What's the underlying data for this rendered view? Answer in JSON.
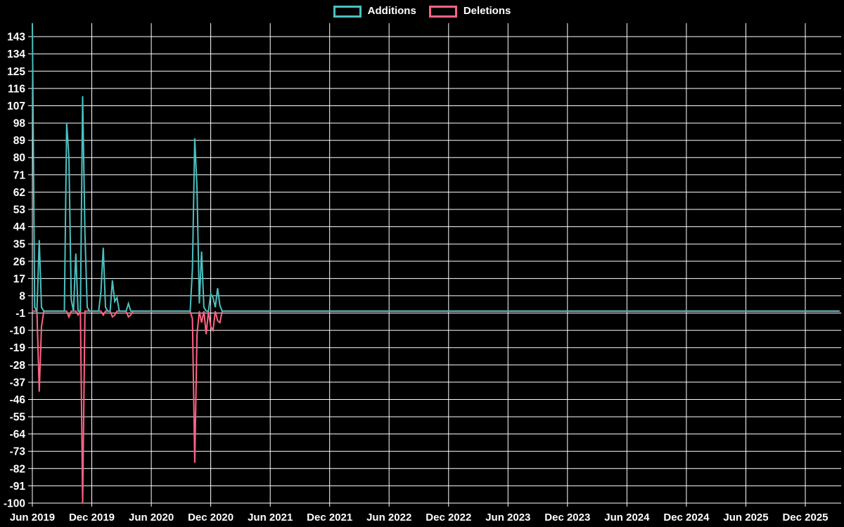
{
  "legend": {
    "items": [
      {
        "label": "Additions",
        "color": "#4bc0c0"
      },
      {
        "label": "Deletions",
        "color": "#ff6384"
      }
    ]
  },
  "chart_data": {
    "type": "line",
    "title": "",
    "xlabel": "",
    "ylabel": "",
    "background_color": "#000000",
    "grid_color": "#ffffff",
    "text_color": "#ffffff",
    "grid": true,
    "legend_position": "top-center",
    "ylim": [
      -100,
      150
    ],
    "y_ticks": [
      143,
      134,
      125,
      116,
      107,
      98,
      89,
      80,
      71,
      62,
      53,
      44,
      35,
      26,
      17,
      8,
      -1,
      -10,
      -19,
      -28,
      -37,
      -46,
      -55,
      -64,
      -73,
      -82,
      -91,
      -100
    ],
    "x_tick_labels": [
      "Jun 2019",
      "Dec 2019",
      "Jun 2020",
      "Dec 2020",
      "Jun 2021",
      "Dec 2021",
      "Jun 2022",
      "Dec 2022",
      "Jun 2023",
      "Dec 2023",
      "Jun 2024",
      "Dec 2024",
      "Jun 2025",
      "Dec 2025"
    ],
    "weeks_per_tick": 26,
    "weeks_total": 354,
    "series": [
      {
        "name": "Additions",
        "color": "#4bc0c0",
        "baseline": 0,
        "points_sparse": [
          [
            0,
            150
          ],
          [
            1,
            2
          ],
          [
            3,
            37
          ],
          [
            4,
            2
          ],
          [
            15,
            98
          ],
          [
            16,
            80
          ],
          [
            17,
            6
          ],
          [
            19,
            30
          ],
          [
            22,
            112
          ],
          [
            23,
            40
          ],
          [
            24,
            2
          ],
          [
            30,
            10
          ],
          [
            31,
            33
          ],
          [
            32,
            2
          ],
          [
            35,
            16
          ],
          [
            36,
            5
          ],
          [
            37,
            7
          ],
          [
            42,
            4
          ],
          [
            70,
            22
          ],
          [
            71,
            90
          ],
          [
            72,
            64
          ],
          [
            73,
            4
          ],
          [
            74,
            31
          ],
          [
            75,
            2
          ],
          [
            78,
            9
          ],
          [
            79,
            7
          ],
          [
            80,
            2
          ],
          [
            81,
            12
          ],
          [
            82,
            3
          ]
        ]
      },
      {
        "name": "Deletions",
        "color": "#ff6384",
        "baseline": 0,
        "points_sparse": [
          [
            3,
            -42
          ],
          [
            4,
            -8
          ],
          [
            16,
            -3
          ],
          [
            20,
            -2
          ],
          [
            22,
            -100
          ],
          [
            31,
            -2
          ],
          [
            35,
            -3
          ],
          [
            36,
            -2
          ],
          [
            42,
            -3
          ],
          [
            43,
            -2
          ],
          [
            70,
            -4
          ],
          [
            71,
            -79
          ],
          [
            72,
            -12
          ],
          [
            74,
            -6
          ],
          [
            76,
            -12
          ],
          [
            78,
            -8
          ],
          [
            79,
            -10
          ],
          [
            81,
            -5
          ],
          [
            82,
            -6
          ]
        ]
      }
    ]
  }
}
